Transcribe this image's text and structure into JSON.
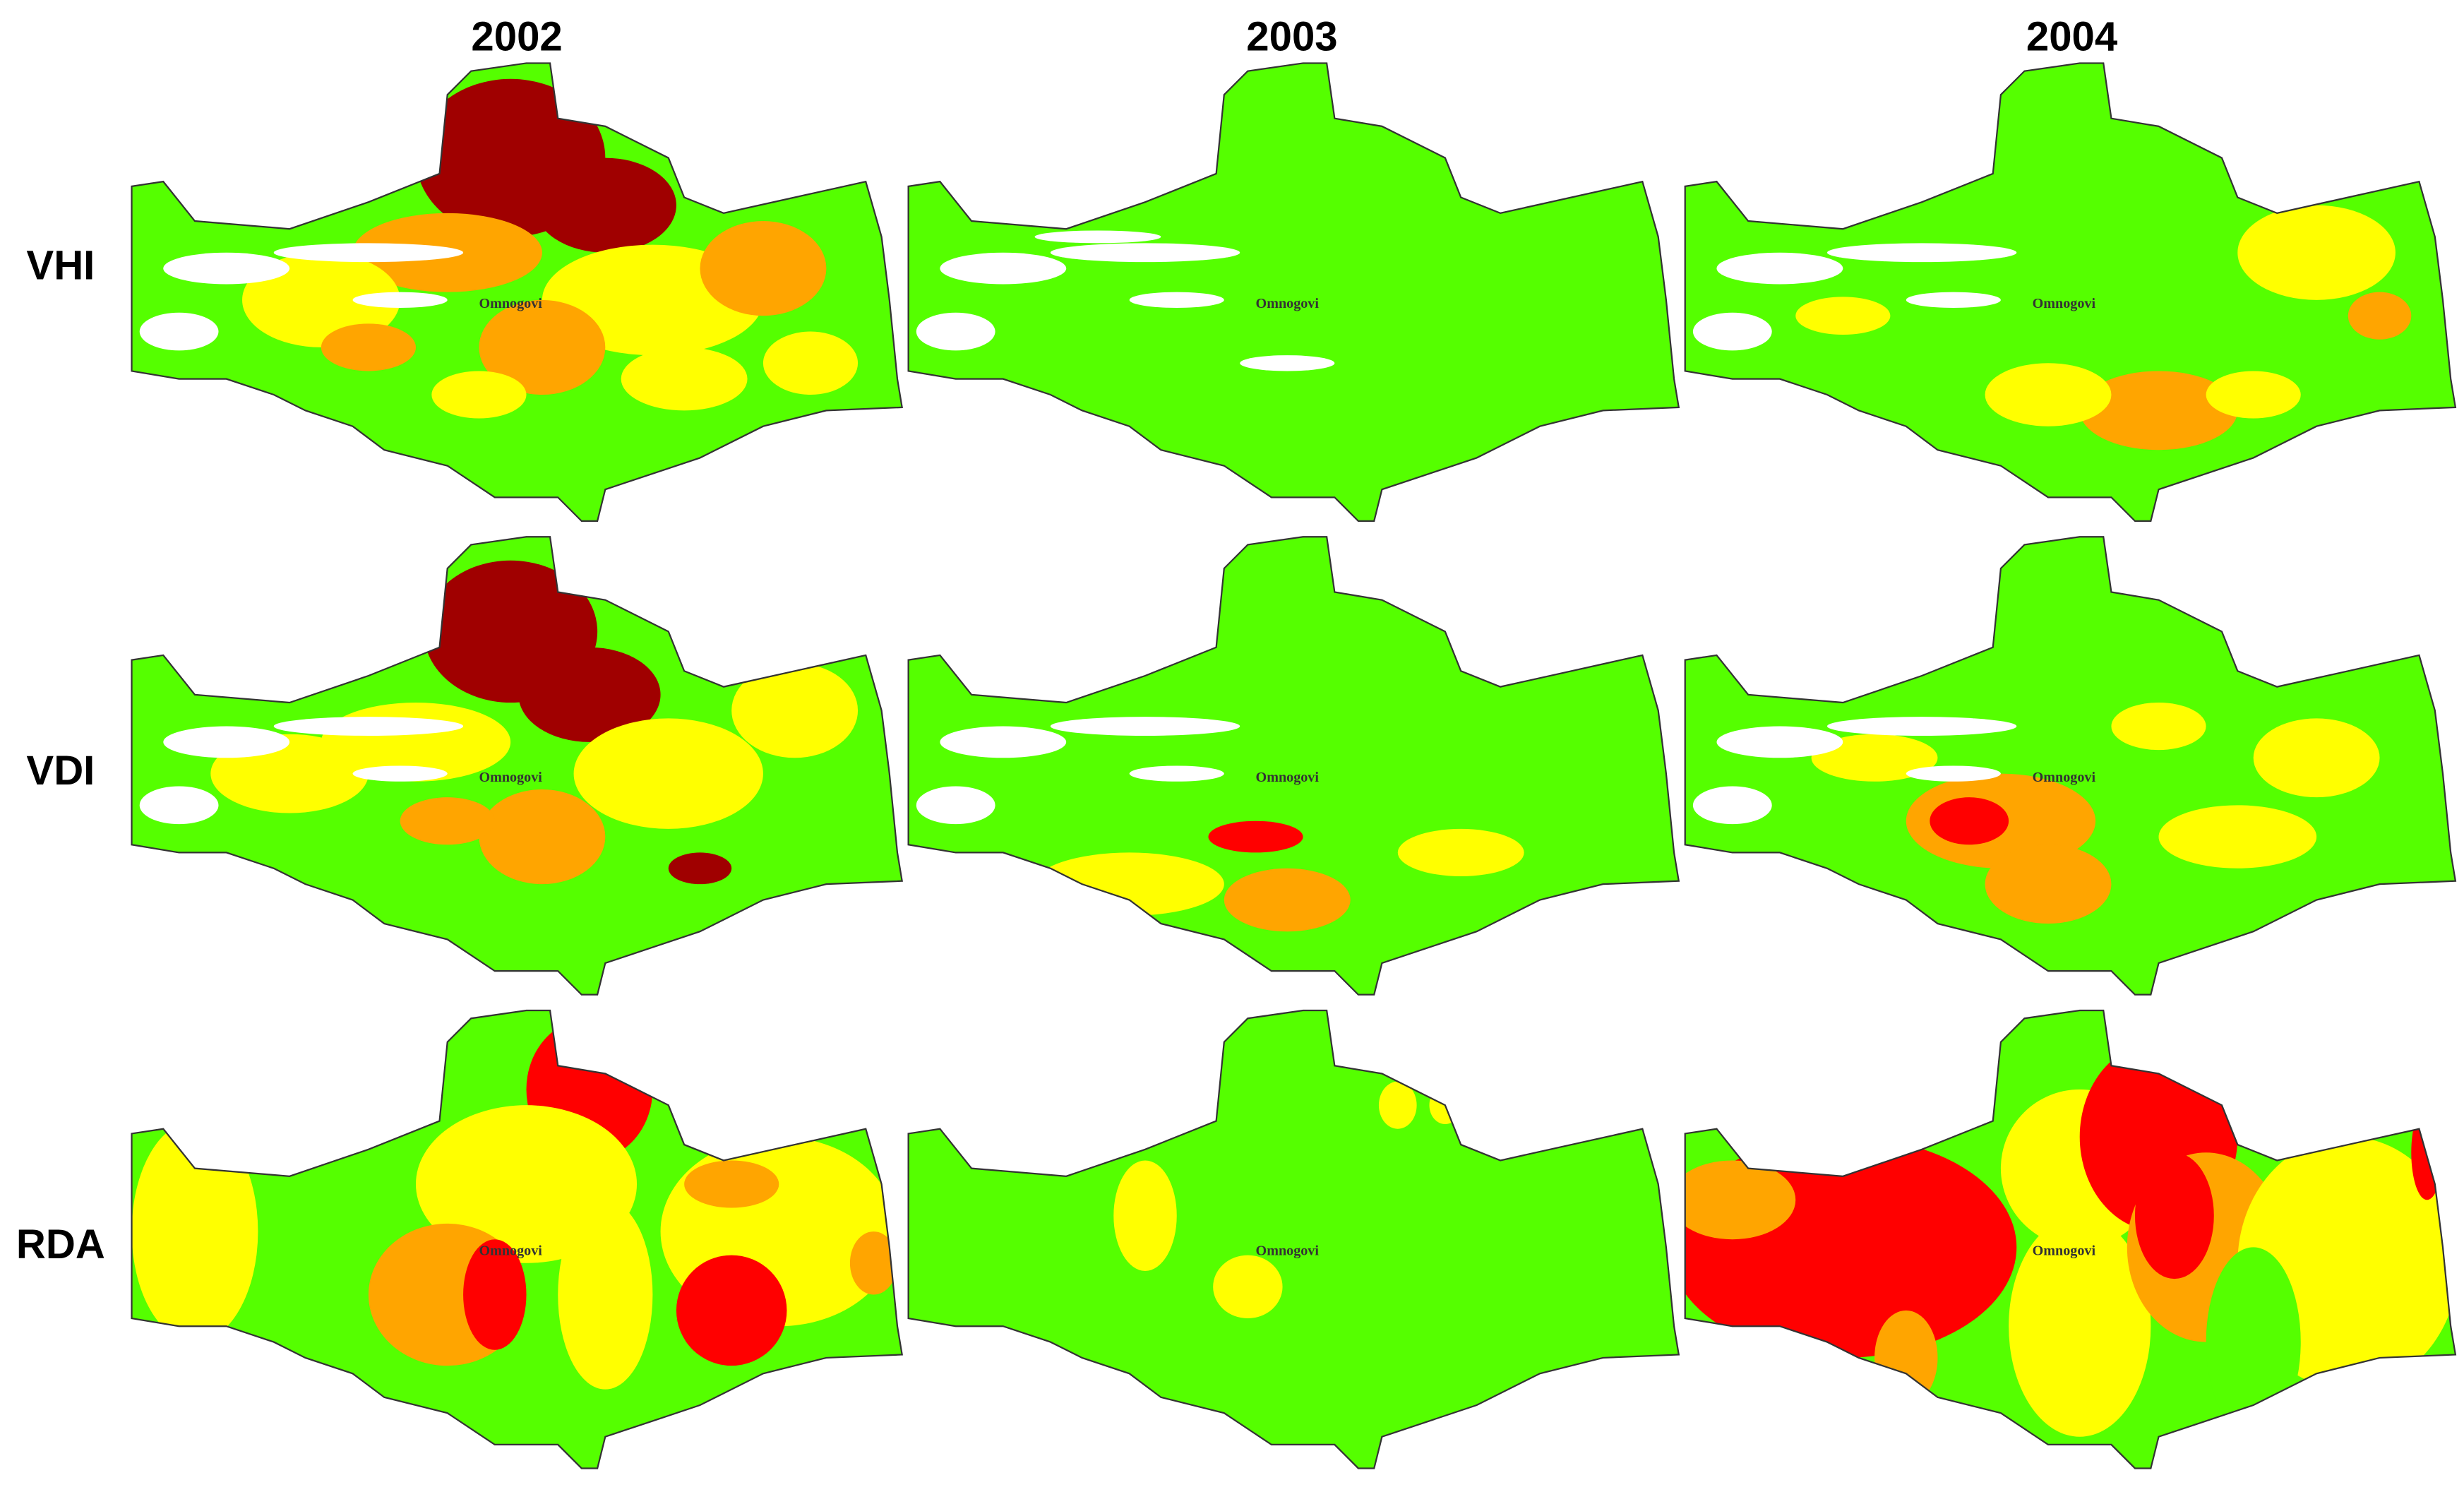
{
  "columns": [
    "2002",
    "2003",
    "2004"
  ],
  "rows": [
    "VHI",
    "VDI",
    "RDA"
  ],
  "maps": [
    [
      {
        "label": "Omnogovi"
      },
      {
        "label": "Omnogovi"
      },
      {
        "label": "Omnogovi"
      }
    ],
    [
      {
        "label": "Omnogovi"
      },
      {
        "label": "Omnogovi"
      },
      {
        "label": "Omnogovi"
      }
    ],
    [
      {
        "label": "Omnogovi"
      },
      {
        "label": "Omnogovi"
      },
      {
        "label": "Omnogovi"
      }
    ]
  ]
}
